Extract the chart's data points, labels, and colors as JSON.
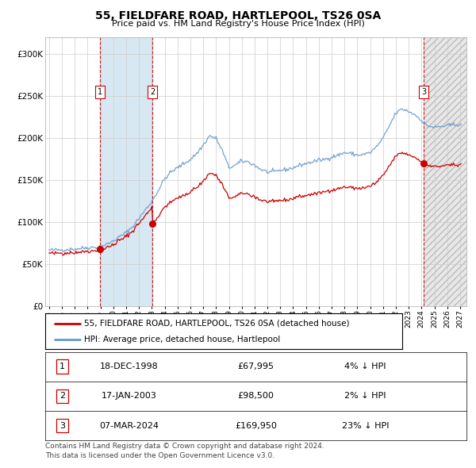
{
  "title": "55, FIELDFARE ROAD, HARTLEPOOL, TS26 0SA",
  "subtitle": "Price paid vs. HM Land Registry's House Price Index (HPI)",
  "ylim": [
    0,
    320000
  ],
  "yticks": [
    0,
    50000,
    100000,
    150000,
    200000,
    250000,
    300000
  ],
  "ytick_labels": [
    "£0",
    "£50K",
    "£100K",
    "£150K",
    "£200K",
    "£250K",
    "£300K"
  ],
  "xstart": 1995,
  "xend": 2027,
  "purchase_prices": [
    67995,
    98500,
    169950
  ],
  "purchase_labels": [
    "1",
    "2",
    "3"
  ],
  "legend_line1": "55, FIELDFARE ROAD, HARTLEPOOL, TS26 0SA (detached house)",
  "legend_line2": "HPI: Average price, detached house, Hartlepool",
  "table_rows": [
    {
      "label": "1",
      "date": "18-DEC-1998",
      "price": "£67,995",
      "change": "4% ↓ HPI"
    },
    {
      "label": "2",
      "date": "17-JAN-2003",
      "price": "£98,500",
      "change": "2% ↓ HPI"
    },
    {
      "label": "3",
      "date": "07-MAR-2024",
      "price": "£169,950",
      "change": "23% ↓ HPI"
    }
  ],
  "footer": "Contains HM Land Registry data © Crown copyright and database right 2024.\nThis data is licensed under the Open Government Licence v3.0.",
  "hpi_color": "#6699cc",
  "price_color": "#cc0000",
  "shade1_color": "#d8e8f3",
  "background_color": "#ffffff"
}
